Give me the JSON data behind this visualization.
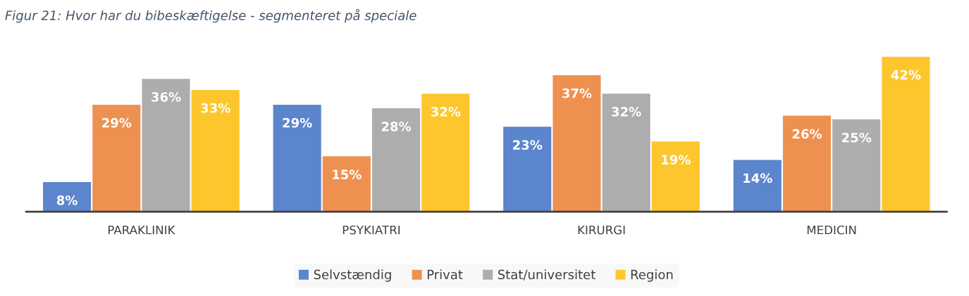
{
  "chart_data": {
    "type": "bar",
    "title": "Figur 21: Hvor har du bibeskæftigelse - segmenteret på speciale",
    "categories": [
      "PARAKLINIK",
      "PSYKIATRI",
      "KIRURGI",
      "MEDICIN"
    ],
    "series": [
      {
        "name": "Selvstændig",
        "color": "#5b85cc",
        "values": [
          8,
          29,
          23,
          14
        ],
        "value_labels": [
          "8%",
          "29%",
          "23%",
          "14%"
        ]
      },
      {
        "name": "Privat",
        "color": "#ee9150",
        "values": [
          29,
          15,
          37,
          26
        ],
        "value_labels": [
          "29%",
          "15%",
          "37%",
          "26%"
        ]
      },
      {
        "name": "Stat/universitet",
        "color": "#adadad",
        "values": [
          36,
          28,
          32,
          25
        ],
        "value_labels": [
          "36%",
          "28%",
          "32%",
          "25%"
        ]
      },
      {
        "name": "Region",
        "color": "#fdc62c",
        "values": [
          33,
          32,
          19,
          42
        ],
        "value_labels": [
          "33%",
          "32%",
          "19%",
          "42%"
        ]
      }
    ],
    "legend": "bottom",
    "tick_labels": "x"
  }
}
